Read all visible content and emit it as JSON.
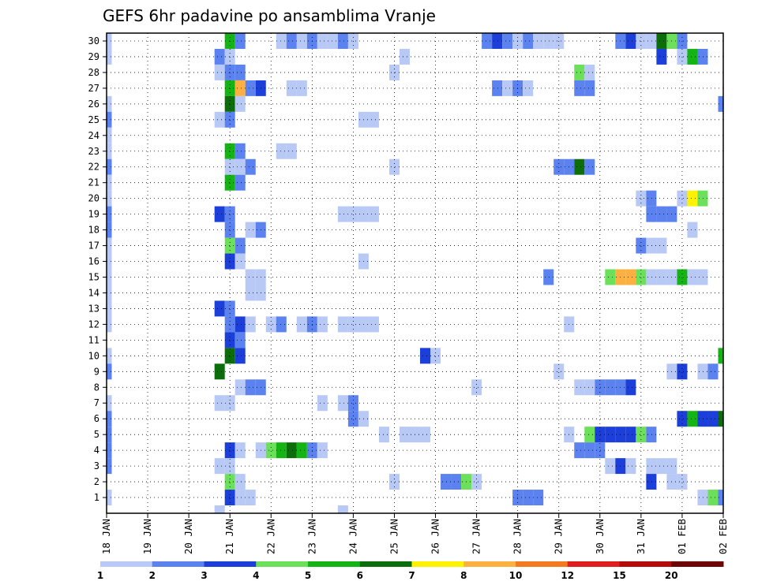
{
  "chart_data": {
    "type": "heatmap",
    "title": "GEFS 6hr padavine po ansamblima Vranje",
    "xlabel": "",
    "ylabel": "",
    "x_ticks": [
      "18 JAN",
      "19 JAN",
      "20 JAN",
      "21 JAN",
      "22 JAN",
      "23 JAN",
      "24 JAN",
      "25 JAN",
      "26 JAN",
      "27 JAN",
      "28 JAN",
      "29 JAN",
      "30 JAN",
      "31 JAN",
      "01 FEB",
      "02 FEB"
    ],
    "y_ticks": [
      1,
      2,
      3,
      4,
      5,
      6,
      7,
      8,
      9,
      10,
      11,
      12,
      13,
      14,
      15,
      16,
      17,
      18,
      19,
      20,
      21,
      22,
      23,
      24,
      25,
      26,
      27,
      28,
      29,
      30
    ],
    "steps_per_day": 4,
    "x_range": [
      0,
      60
    ],
    "y_range": [
      0.5,
      30.5
    ],
    "grid": true,
    "colorbar": {
      "labels": [
        "1",
        "2",
        "3",
        "4",
        "5",
        "6",
        "7",
        "8",
        "10",
        "12",
        "15",
        "20"
      ],
      "colors": [
        "#b8c9f5",
        "#5b82ee",
        "#1c3fd9",
        "#6ce05a",
        "#14b414",
        "#0b6e0b",
        "#fff200",
        "#fbb040",
        "#f47a1f",
        "#e01e1e",
        "#b40a0a",
        "#6e0505"
      ]
    },
    "cells": [
      [
        30,
        0,
        1
      ],
      [
        30,
        12,
        5
      ],
      [
        30,
        13,
        2
      ],
      [
        30,
        17,
        1
      ],
      [
        30,
        18,
        2
      ],
      [
        30,
        19,
        1
      ],
      [
        30,
        20,
        2
      ],
      [
        30,
        21,
        1
      ],
      [
        30,
        22,
        1
      ],
      [
        30,
        23,
        2
      ],
      [
        30,
        24,
        1
      ],
      [
        30,
        37,
        2
      ],
      [
        30,
        38,
        3
      ],
      [
        30,
        39,
        2
      ],
      [
        30,
        40,
        1
      ],
      [
        30,
        41,
        2
      ],
      [
        30,
        42,
        1
      ],
      [
        30,
        43,
        1
      ],
      [
        30,
        44,
        1
      ],
      [
        30,
        50,
        2
      ],
      [
        30,
        51,
        3
      ],
      [
        30,
        52,
        1
      ],
      [
        30,
        53,
        1
      ],
      [
        30,
        54,
        6
      ],
      [
        30,
        55,
        4
      ],
      [
        30,
        56,
        2
      ],
      [
        29,
        0,
        1
      ],
      [
        29,
        11,
        2
      ],
      [
        29,
        12,
        1
      ],
      [
        29,
        29,
        1
      ],
      [
        29,
        54,
        3
      ],
      [
        29,
        56,
        1
      ],
      [
        29,
        57,
        5
      ],
      [
        29,
        58,
        2
      ],
      [
        28,
        11,
        1
      ],
      [
        28,
        12,
        2
      ],
      [
        28,
        13,
        2
      ],
      [
        28,
        28,
        1
      ],
      [
        28,
        46,
        4
      ],
      [
        28,
        47,
        1
      ],
      [
        27,
        12,
        5
      ],
      [
        27,
        13,
        8
      ],
      [
        27,
        14,
        2
      ],
      [
        27,
        15,
        3
      ],
      [
        27,
        18,
        1
      ],
      [
        27,
        19,
        1
      ],
      [
        27,
        38,
        2
      ],
      [
        27,
        39,
        1
      ],
      [
        27,
        40,
        2
      ],
      [
        27,
        41,
        1
      ],
      [
        27,
        46,
        2
      ],
      [
        27,
        47,
        2
      ],
      [
        26,
        0,
        1
      ],
      [
        26,
        12,
        6
      ],
      [
        26,
        13,
        1
      ],
      [
        26,
        60,
        2
      ],
      [
        25,
        0,
        2
      ],
      [
        25,
        11,
        1
      ],
      [
        25,
        12,
        2
      ],
      [
        25,
        25,
        1
      ],
      [
        25,
        26,
        1
      ],
      [
        24,
        0,
        1
      ],
      [
        23,
        0,
        1
      ],
      [
        23,
        12,
        5
      ],
      [
        23,
        13,
        2
      ],
      [
        23,
        17,
        1
      ],
      [
        23,
        18,
        1
      ],
      [
        22,
        0,
        2
      ],
      [
        22,
        12,
        1
      ],
      [
        22,
        13,
        1
      ],
      [
        22,
        14,
        2
      ],
      [
        22,
        28,
        1
      ],
      [
        22,
        44,
        2
      ],
      [
        22,
        45,
        2
      ],
      [
        22,
        46,
        6
      ],
      [
        22,
        47,
        2
      ],
      [
        21,
        0,
        1
      ],
      [
        21,
        12,
        5
      ],
      [
        21,
        13,
        2
      ],
      [
        20,
        0,
        1
      ],
      [
        20,
        52,
        1
      ],
      [
        20,
        53,
        2
      ],
      [
        20,
        56,
        1
      ],
      [
        20,
        57,
        7
      ],
      [
        20,
        58,
        4
      ],
      [
        19,
        0,
        2
      ],
      [
        19,
        11,
        3
      ],
      [
        19,
        12,
        2
      ],
      [
        19,
        23,
        1
      ],
      [
        19,
        24,
        1
      ],
      [
        19,
        25,
        1
      ],
      [
        19,
        26,
        1
      ],
      [
        19,
        53,
        2
      ],
      [
        19,
        54,
        2
      ],
      [
        19,
        55,
        2
      ],
      [
        18,
        0,
        2
      ],
      [
        18,
        12,
        2
      ],
      [
        18,
        14,
        1
      ],
      [
        18,
        15,
        2
      ],
      [
        18,
        57,
        1
      ],
      [
        17,
        0,
        1
      ],
      [
        17,
        12,
        4
      ],
      [
        17,
        13,
        2
      ],
      [
        17,
        52,
        2
      ],
      [
        17,
        53,
        1
      ],
      [
        17,
        54,
        1
      ],
      [
        16,
        0,
        1
      ],
      [
        16,
        12,
        3
      ],
      [
        16,
        13,
        1
      ],
      [
        16,
        25,
        1
      ],
      [
        15,
        0,
        1
      ],
      [
        15,
        14,
        1
      ],
      [
        15,
        15,
        1
      ],
      [
        15,
        43,
        2
      ],
      [
        15,
        49,
        4
      ],
      [
        15,
        50,
        8
      ],
      [
        15,
        51,
        8
      ],
      [
        15,
        52,
        4
      ],
      [
        15,
        53,
        1
      ],
      [
        15,
        54,
        1
      ],
      [
        15,
        55,
        1
      ],
      [
        15,
        56,
        5
      ],
      [
        15,
        57,
        1
      ],
      [
        15,
        58,
        1
      ],
      [
        14,
        0,
        1
      ],
      [
        14,
        14,
        1
      ],
      [
        14,
        15,
        1
      ],
      [
        13,
        0,
        1
      ],
      [
        13,
        11,
        3
      ],
      [
        13,
        12,
        2
      ],
      [
        12,
        0,
        1
      ],
      [
        12,
        12,
        2
      ],
      [
        12,
        13,
        3
      ],
      [
        12,
        14,
        1
      ],
      [
        12,
        16,
        1
      ],
      [
        12,
        17,
        2
      ],
      [
        12,
        19,
        1
      ],
      [
        12,
        20,
        2
      ],
      [
        12,
        21,
        1
      ],
      [
        12,
        23,
        1
      ],
      [
        12,
        24,
        1
      ],
      [
        12,
        25,
        1
      ],
      [
        12,
        26,
        1
      ],
      [
        12,
        45,
        1
      ],
      [
        11,
        12,
        3
      ],
      [
        11,
        13,
        2
      ],
      [
        10,
        0,
        1
      ],
      [
        10,
        12,
        6
      ],
      [
        10,
        13,
        3
      ],
      [
        10,
        31,
        3
      ],
      [
        10,
        32,
        1
      ],
      [
        10,
        60,
        5
      ],
      [
        9,
        0,
        2
      ],
      [
        9,
        11,
        6
      ],
      [
        9,
        44,
        1
      ],
      [
        9,
        55,
        1
      ],
      [
        9,
        56,
        3
      ],
      [
        9,
        58,
        1
      ],
      [
        9,
        59,
        2
      ],
      [
        8,
        13,
        1
      ],
      [
        8,
        14,
        2
      ],
      [
        8,
        15,
        2
      ],
      [
        8,
        36,
        1
      ],
      [
        8,
        46,
        1
      ],
      [
        8,
        47,
        1
      ],
      [
        8,
        48,
        2
      ],
      [
        8,
        49,
        2
      ],
      [
        8,
        50,
        2
      ],
      [
        8,
        51,
        3
      ],
      [
        7,
        0,
        1
      ],
      [
        7,
        11,
        1
      ],
      [
        7,
        12,
        1
      ],
      [
        7,
        21,
        1
      ],
      [
        7,
        23,
        1
      ],
      [
        7,
        24,
        2
      ],
      [
        6,
        0,
        2
      ],
      [
        6,
        24,
        2
      ],
      [
        6,
        25,
        1
      ],
      [
        6,
        56,
        3
      ],
      [
        6,
        57,
        5
      ],
      [
        6,
        58,
        3
      ],
      [
        6,
        59,
        3
      ],
      [
        6,
        60,
        6
      ],
      [
        5,
        0,
        2
      ],
      [
        5,
        27,
        1
      ],
      [
        5,
        29,
        1
      ],
      [
        5,
        30,
        1
      ],
      [
        5,
        31,
        1
      ],
      [
        5,
        45,
        1
      ],
      [
        5,
        47,
        4
      ],
      [
        5,
        48,
        3
      ],
      [
        5,
        49,
        3
      ],
      [
        5,
        50,
        3
      ],
      [
        5,
        51,
        3
      ],
      [
        5,
        52,
        4
      ],
      [
        5,
        53,
        2
      ],
      [
        4,
        0,
        2
      ],
      [
        4,
        12,
        3
      ],
      [
        4,
        13,
        1
      ],
      [
        4,
        15,
        1
      ],
      [
        4,
        16,
        4
      ],
      [
        4,
        17,
        5
      ],
      [
        4,
        18,
        6
      ],
      [
        4,
        19,
        5
      ],
      [
        4,
        20,
        2
      ],
      [
        4,
        21,
        1
      ],
      [
        4,
        46,
        2
      ],
      [
        4,
        47,
        2
      ],
      [
        4,
        48,
        2
      ],
      [
        3,
        0,
        2
      ],
      [
        3,
        11,
        1
      ],
      [
        3,
        12,
        1
      ],
      [
        3,
        49,
        1
      ],
      [
        3,
        50,
        3
      ],
      [
        3,
        51,
        1
      ],
      [
        3,
        53,
        1
      ],
      [
        3,
        54,
        1
      ],
      [
        3,
        55,
        1
      ],
      [
        2,
        12,
        4
      ],
      [
        2,
        13,
        1
      ],
      [
        2,
        28,
        1
      ],
      [
        2,
        33,
        2
      ],
      [
        2,
        34,
        2
      ],
      [
        2,
        35,
        4
      ],
      [
        2,
        36,
        1
      ],
      [
        2,
        53,
        3
      ],
      [
        2,
        55,
        1
      ],
      [
        2,
        56,
        1
      ],
      [
        1,
        0,
        1
      ],
      [
        1,
        12,
        3
      ],
      [
        1,
        13,
        1
      ],
      [
        1,
        14,
        1
      ],
      [
        1,
        40,
        2
      ],
      [
        1,
        41,
        2
      ],
      [
        1,
        42,
        2
      ],
      [
        1,
        58,
        1
      ],
      [
        1,
        59,
        4
      ],
      [
        1,
        60,
        2
      ],
      [
        0,
        11,
        1
      ],
      [
        0,
        23,
        1
      ]
    ]
  }
}
